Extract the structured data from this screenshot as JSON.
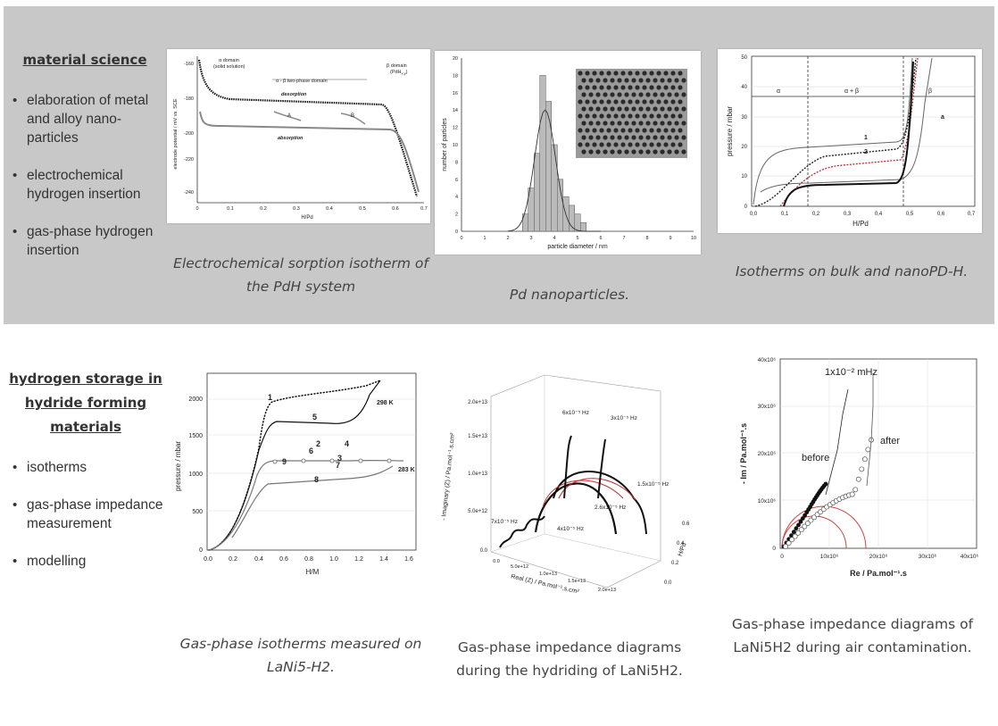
{
  "section1": {
    "title": "material science",
    "bullets": [
      "elaboration of metal and alloy nano-particles",
      "electrochemical hydrogen insertion",
      "gas-phase hydrogen insertion"
    ],
    "captions": [
      "Electrochemical sorption isotherm of the PdH system",
      "Pd nanoparticles.",
      "Isotherms on bulk and nanoPD-H."
    ]
  },
  "section2": {
    "title": "hydrogen storage in hydride forming materials",
    "bullets": [
      "isotherms",
      "gas-phase impedance measurement",
      "modelling"
    ],
    "captions": [
      "Gas-phase isotherms measured on LaNi5-H2.",
      "Gas-phase impedance diagrams during the hydriding of LaNi5H2.",
      "Gas-phase impedance diagrams of LaNi5H2 during air contamination."
    ]
  },
  "fig1": {
    "ylabel": "electrode potential / mV vs. SCE",
    "xlabel": "H/Pd",
    "yticks": [
      "-160",
      "-180",
      "-200",
      "-220",
      "-240"
    ],
    "xticks": [
      "0",
      "0.1",
      "0.2",
      "0.3",
      "0.4",
      "0.5",
      "0.6",
      "0.7"
    ],
    "alpha_domain": "α domain",
    "alpha_sub": "(solid solution)",
    "two_phase": "α - β two-phase domain",
    "beta_domain": "β domain",
    "beta_sub": "(PdH",
    "beta_sub_index": "x,y",
    "beta_sub_end": ")",
    "desorption": "desorption",
    "absorption": "absorption",
    "label_a": "A",
    "label_b": "B"
  },
  "fig2": {
    "ylabel": "number of particles",
    "xlabel": "particle diameter / nm",
    "yticks": [
      "0",
      "2",
      "4",
      "6",
      "8",
      "10",
      "12",
      "14",
      "16",
      "18",
      "20"
    ],
    "xticks": [
      "0",
      "1",
      "2",
      "3",
      "4",
      "5",
      "6",
      "7",
      "8",
      "9",
      "10"
    ],
    "chart_data": {
      "type": "bar",
      "x": [
        2.75,
        3.0,
        3.25,
        3.5,
        3.75,
        4.0,
        4.25,
        4.5,
        4.75,
        5.0,
        5.25
      ],
      "values": [
        2,
        5,
        9,
        18,
        15,
        10,
        6,
        4,
        3,
        2,
        1
      ],
      "xlim": [
        0,
        10
      ],
      "ylim": [
        0,
        20
      ]
    }
  },
  "fig3": {
    "ylabel": "pressure / mbar",
    "xlabel": "H/Pd",
    "yticks": [
      "0",
      "10",
      "20",
      "30",
      "40",
      "50"
    ],
    "xticks": [
      "0,0",
      "0,1",
      "0,2",
      "0,3",
      "0,4",
      "0,5",
      "0,6",
      "0,7"
    ],
    "alpha": "α",
    "alpha_beta": "α + β",
    "beta": "β",
    "l1": "1",
    "l2": "2",
    "la": "a"
  },
  "fig4": {
    "ylabel": "pressure / mbar",
    "xlabel": "H/M",
    "yticks": [
      "0",
      "500",
      "1000",
      "1500",
      "2000"
    ],
    "xticks": [
      "0.0",
      "0.2",
      "0.4",
      "0.6",
      "0.8",
      "1.0",
      "1.2",
      "1.4",
      "1.6"
    ],
    "t298": "298 K",
    "t283": "283 K",
    "nums": [
      "1",
      "2",
      "3",
      "4",
      "5",
      "6",
      "7",
      "8",
      "9"
    ]
  },
  "fig5": {
    "zlabel": "- Imaginary (Z) / Pa.mol⁻¹.s.cm²",
    "xlabel": "Real (Z) / Pa.mol⁻¹.s.cm²",
    "ylabel": "H/Pd",
    "zticks": [
      "0.0",
      "5.0e+12",
      "1.0e+13",
      "1.5e+13",
      "2.0e+13"
    ],
    "xticks": [
      "0.0",
      "5.0e+12",
      "1.0e+13",
      "1.5e+13",
      "2.0e+13"
    ],
    "yticks": [
      "0.0",
      "0.2",
      "0.4",
      "0.6"
    ],
    "f1": "6x10⁻⁵ Hz",
    "f2": "3x10⁻⁵ Hz",
    "f3": "1.5x10⁻⁵ Hz",
    "f4": "2.6x10⁻⁵ Hz",
    "f5": "4x10⁻⁵ Hz",
    "f6": "7x10⁻⁵ Hz"
  },
  "fig6": {
    "ylabel": "- Im / Pa.mol⁻¹.s",
    "xlabel": "Re / Pa.mol⁻¹.s",
    "yticks": [
      "0",
      "10x10⁶",
      "20x10⁶",
      "30x10⁶",
      "40x10⁶"
    ],
    "xticks": [
      "0",
      "10x10⁶",
      "20x10⁶",
      "30x10⁶",
      "40x10⁶"
    ],
    "freq": "1x10⁻² mHz",
    "before": "before",
    "after": "after"
  }
}
